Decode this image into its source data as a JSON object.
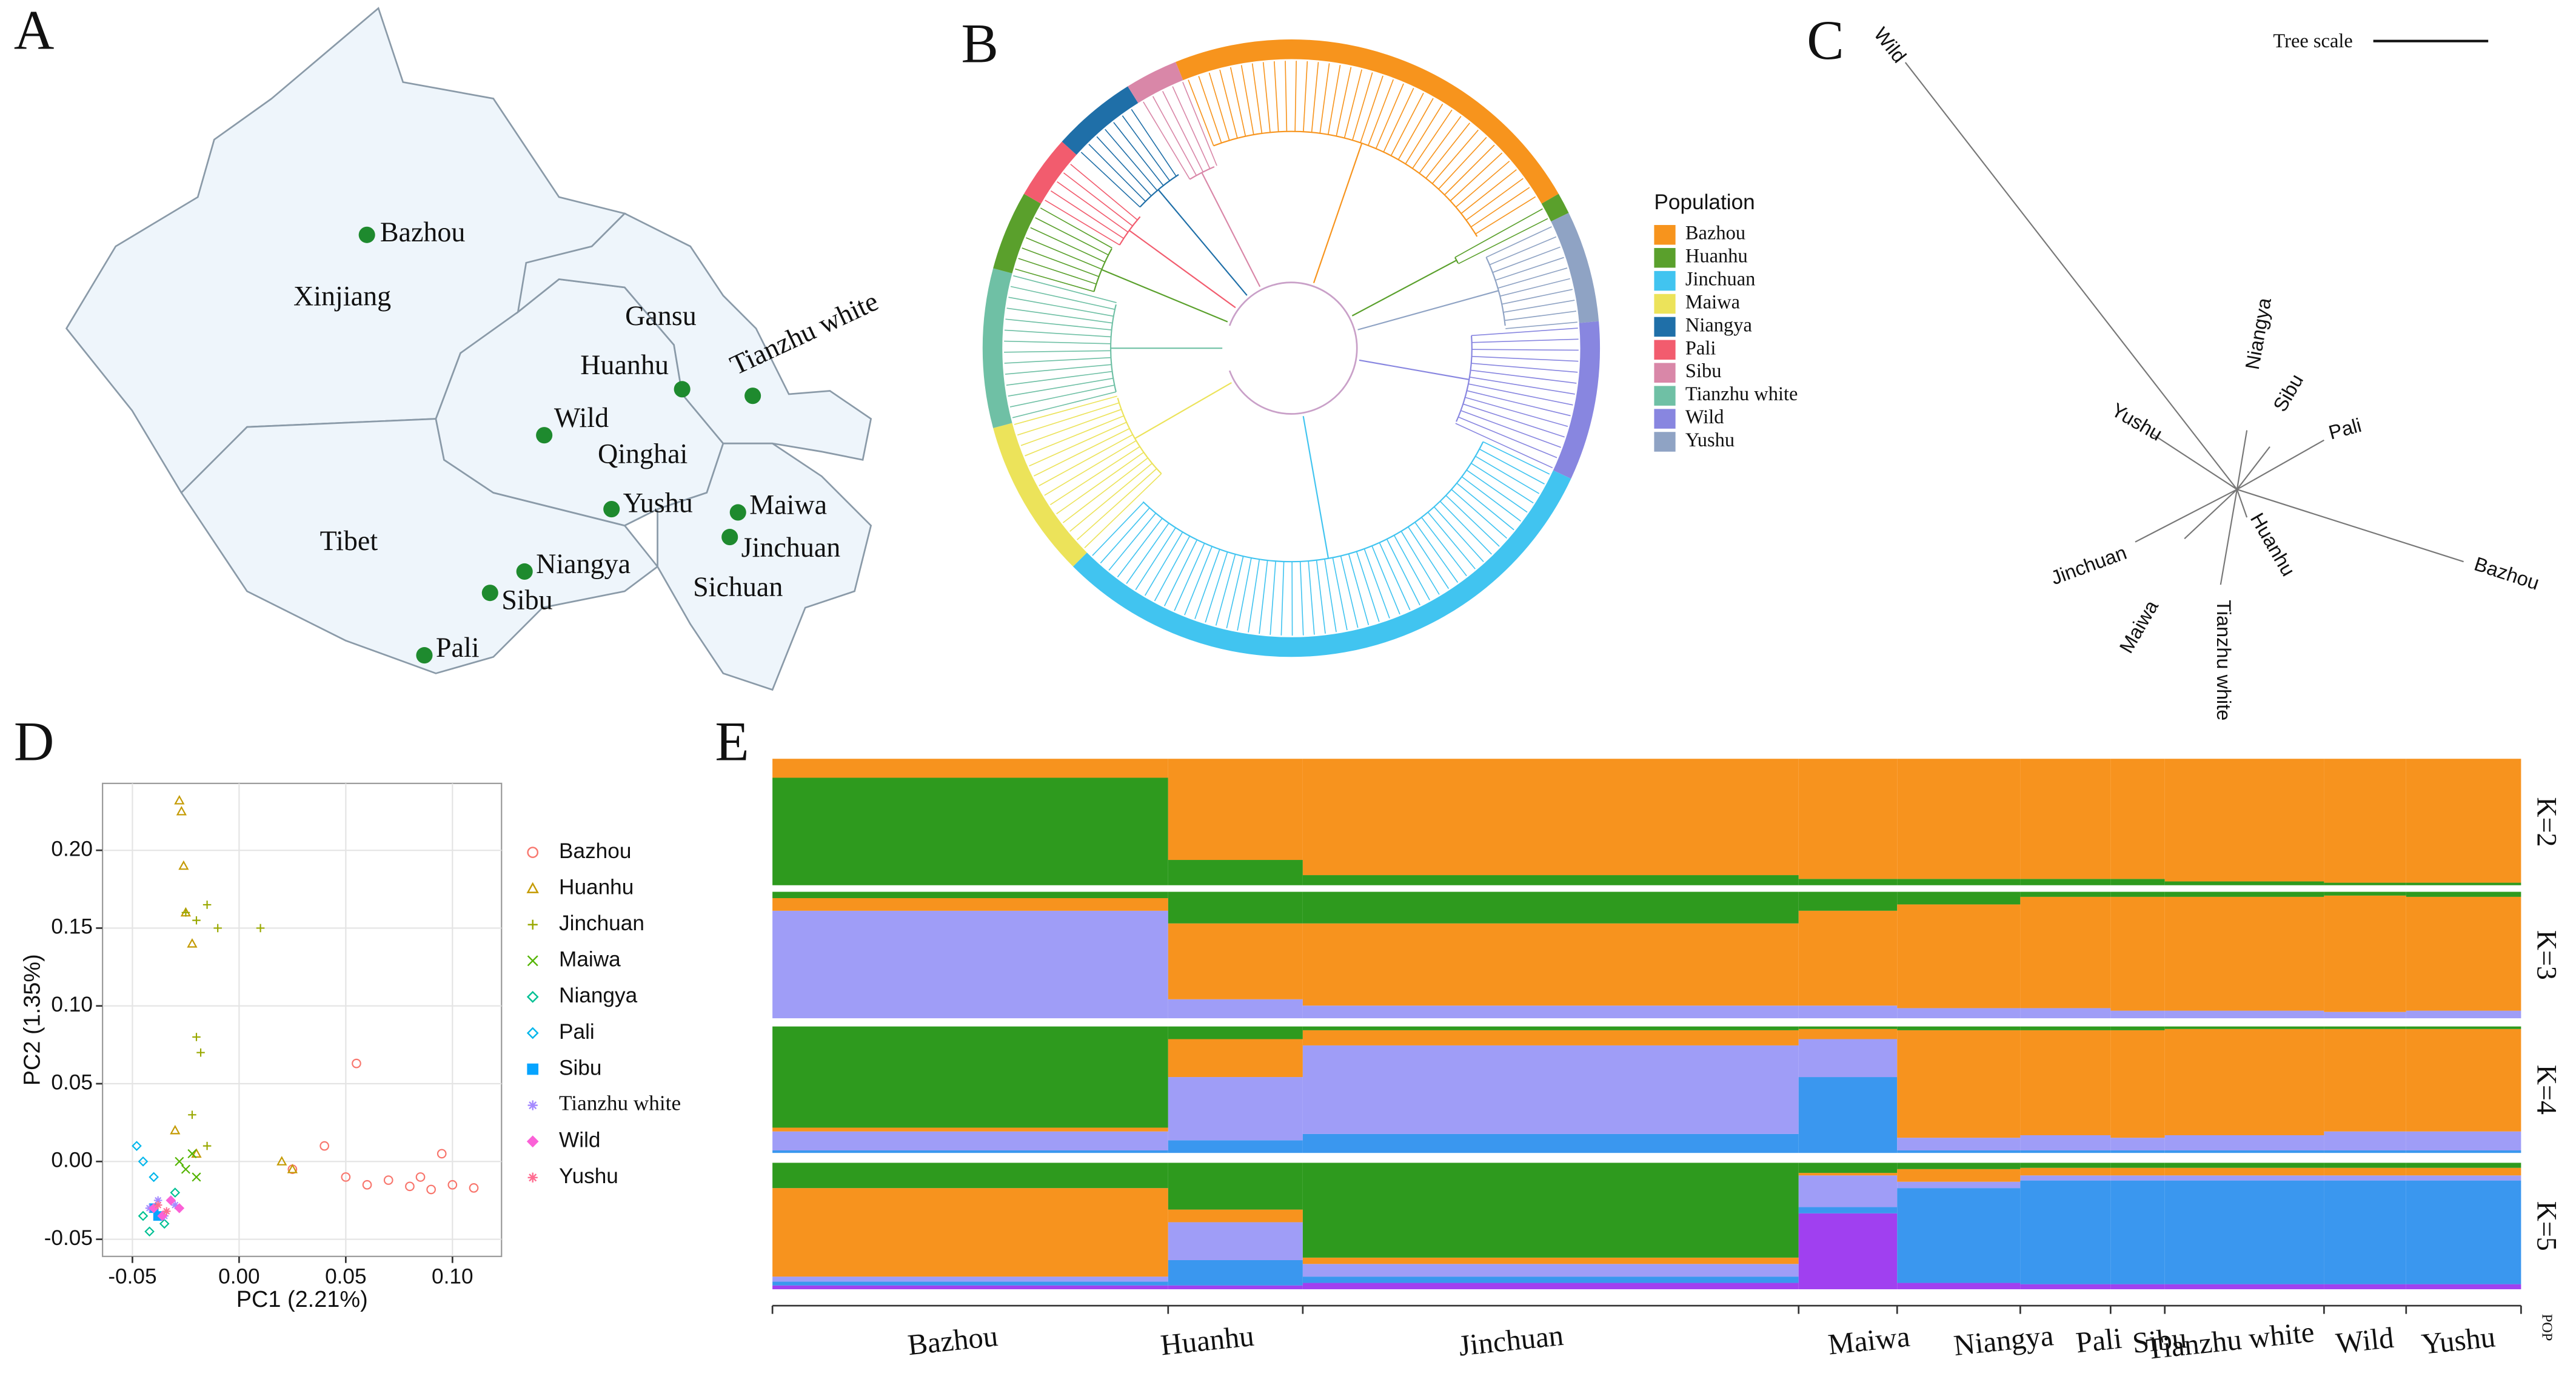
{
  "panels": {
    "a": "A",
    "b": "B",
    "c": "C",
    "d": "D",
    "e": "E"
  },
  "map": {
    "regions": [
      "Xinjiang",
      "Gansu",
      "Qinghai",
      "Tibet",
      "Sichuan"
    ],
    "sites": [
      "Bazhou",
      "Huanhu",
      "Tianzhu white",
      "Wild",
      "Yushu",
      "Maiwa",
      "Jinchuan",
      "Niangya",
      "Sibu",
      "Pali"
    ],
    "site_color": "#1e8a2e",
    "label_color": "#f0304a"
  },
  "tree_legend": {
    "title": "Population",
    "items": [
      {
        "name": "Bazhou",
        "color": "#f7941d"
      },
      {
        "name": "Huanhu",
        "color": "#5aa02c"
      },
      {
        "name": "Jinchuan",
        "color": "#41c4f0"
      },
      {
        "name": "Maiwa",
        "color": "#ece35a"
      },
      {
        "name": "Niangya",
        "color": "#1f6fa8"
      },
      {
        "name": "Pali",
        "color": "#f25c6e"
      },
      {
        "name": "Sibu",
        "color": "#d987a8"
      },
      {
        "name": "Tianzhu white",
        "color": "#6fc0a5"
      },
      {
        "name": "Wild",
        "color": "#8886e0"
      },
      {
        "name": "Yushu",
        "color": "#8fa3c4"
      }
    ]
  },
  "unrooted_tree": {
    "scale_label": "Tree scale",
    "tips": [
      "Wild",
      "Yushu",
      "Niangya",
      "Sibu",
      "Pali",
      "Bazhou",
      "Huanhu",
      "Tianzhu white",
      "Maiwa",
      "Jinchuan"
    ]
  },
  "chart_data": {
    "type": "scatter",
    "xlabel": "PC1 (2.21%)",
    "ylabel": "PC2 (1.35%)",
    "xlim": [
      -0.064,
      0.123
    ],
    "ylim": [
      -0.061,
      0.243
    ],
    "xticks": [
      -0.05,
      {
        "value": 0,
        "label": "0.00"
      },
      0.05,
      {
        "value": 0.1,
        "label": "0.10"
      }
    ],
    "yticks": [
      -0.05,
      {
        "value": 0,
        "label": "0.00"
      },
      0.05,
      {
        "value": 0.1,
        "label": "0.10"
      },
      0.15,
      {
        "value": 0.2,
        "label": "0.20"
      }
    ],
    "grid": true,
    "series": [
      {
        "name": "Bazhou",
        "color": "#f8766d",
        "shape": "circle",
        "x": [
          0.025,
          0.05,
          0.06,
          0.07,
          0.08,
          0.09,
          0.1,
          0.11,
          0.055,
          0.04,
          0.085,
          0.095
        ],
        "y": [
          -0.005,
          -0.01,
          -0.015,
          -0.012,
          -0.016,
          -0.018,
          -0.015,
          -0.017,
          0.063,
          0.01,
          -0.01,
          0.005
        ]
      },
      {
        "name": "Huanhu",
        "color": "#c49a00",
        "shape": "triangle",
        "x": [
          -0.028,
          -0.027,
          -0.026,
          -0.025,
          -0.022,
          0.02,
          0.025,
          -0.03,
          -0.02
        ],
        "y": [
          0.232,
          0.225,
          0.19,
          0.16,
          0.14,
          0.0,
          -0.005,
          0.02,
          0.005
        ]
      },
      {
        "name": "Jinchuan",
        "color": "#99a800",
        "shape": "plus",
        "x": [
          -0.025,
          -0.02,
          -0.015,
          -0.01,
          -0.02,
          -0.018,
          -0.022,
          -0.015,
          0.01
        ],
        "y": [
          0.16,
          0.155,
          0.165,
          0.15,
          0.08,
          0.07,
          0.03,
          0.01,
          0.15
        ]
      },
      {
        "name": "Maiwa",
        "color": "#53b400",
        "shape": "cross",
        "x": [
          -0.028,
          -0.025,
          -0.022,
          -0.02
        ],
        "y": [
          0.0,
          -0.005,
          0.005,
          -0.01
        ]
      },
      {
        "name": "Niangya",
        "color": "#00c094",
        "shape": "diamond",
        "x": [
          -0.045,
          -0.04,
          -0.035,
          -0.03,
          -0.042
        ],
        "y": [
          -0.035,
          -0.03,
          -0.04,
          -0.02,
          -0.045
        ]
      },
      {
        "name": "Pali",
        "color": "#00b6eb",
        "shape": "diamond",
        "x": [
          -0.048,
          -0.045,
          -0.04
        ],
        "y": [
          0.01,
          0.0,
          -0.01
        ]
      },
      {
        "name": "Sibu",
        "color": "#06a4ff",
        "shape": "square",
        "x": [
          -0.04,
          -0.038
        ],
        "y": [
          -0.03,
          -0.035
        ]
      },
      {
        "name": "Tianzhu white",
        "color": "#a58aff",
        "shape": "star",
        "x": [
          -0.042,
          -0.038,
          -0.035,
          -0.03
        ],
        "y": [
          -0.03,
          -0.025,
          -0.035,
          -0.028
        ]
      },
      {
        "name": "Wild",
        "color": "#fb61d7",
        "shape": "filled-diamond",
        "x": [
          -0.04,
          -0.036,
          -0.032,
          -0.028
        ],
        "y": [
          -0.03,
          -0.035,
          -0.025,
          -0.03
        ]
      },
      {
        "name": "Yushu",
        "color": "#ff6c91",
        "shape": "star",
        "x": [
          -0.038,
          -0.034
        ],
        "y": [
          -0.028,
          -0.032
        ]
      }
    ]
  },
  "admixture": {
    "pop_label": "POP",
    "populations": [
      "Bazhou",
      "Huanhu",
      "Jinchuan",
      "Maiwa",
      "Niangya",
      "Pali",
      "Sibu",
      "Tianzhu white",
      "Wild",
      "Yushu"
    ],
    "k": [
      {
        "label": "K=2",
        "colors": [
          "#2e9a1e",
          "#f7931e"
        ],
        "values": [
          [
            0.85,
            0.15
          ],
          [
            0.2,
            0.8
          ],
          [
            0.08,
            0.92
          ],
          [
            0.05,
            0.95
          ],
          [
            0.05,
            0.95
          ],
          [
            0.05,
            0.95
          ],
          [
            0.05,
            0.95
          ],
          [
            0.03,
            0.97
          ],
          [
            0.02,
            0.98
          ],
          [
            0.02,
            0.98
          ]
        ]
      },
      {
        "label": "K=3",
        "colors": [
          "#9f9df7",
          "#f7931e",
          "#2e9a1e"
        ],
        "values": [
          [
            0.85,
            0.1,
            0.05
          ],
          [
            0.15,
            0.6,
            0.25
          ],
          [
            0.1,
            0.65,
            0.25
          ],
          [
            0.1,
            0.75,
            0.15
          ],
          [
            0.08,
            0.82,
            0.1
          ],
          [
            0.08,
            0.88,
            0.04
          ],
          [
            0.06,
            0.9,
            0.04
          ],
          [
            0.06,
            0.9,
            0.04
          ],
          [
            0.05,
            0.92,
            0.03
          ],
          [
            0.06,
            0.9,
            0.04
          ]
        ]
      },
      {
        "label": "K=4",
        "colors": [
          "#3a97ef",
          "#9f9df7",
          "#f7931e",
          "#2e9a1e"
        ],
        "values": [
          [
            0.02,
            0.15,
            0.03,
            0.8
          ],
          [
            0.1,
            0.5,
            0.3,
            0.1
          ],
          [
            0.15,
            0.7,
            0.12,
            0.03
          ],
          [
            0.6,
            0.3,
            0.08,
            0.02
          ],
          [
            0.02,
            0.1,
            0.85,
            0.03
          ],
          [
            0.02,
            0.12,
            0.83,
            0.03
          ],
          [
            0.02,
            0.1,
            0.85,
            0.03
          ],
          [
            0.02,
            0.12,
            0.84,
            0.02
          ],
          [
            0.02,
            0.15,
            0.81,
            0.02
          ],
          [
            0.02,
            0.15,
            0.81,
            0.02
          ]
        ]
      },
      {
        "label": "K=5",
        "colors": [
          "#a040f0",
          "#3a97ef",
          "#9f9df7",
          "#f7931e",
          "#2e9a1e"
        ],
        "values": [
          [
            0.03,
            0.03,
            0.04,
            0.7,
            0.2
          ],
          [
            0.03,
            0.2,
            0.3,
            0.1,
            0.37
          ],
          [
            0.05,
            0.05,
            0.1,
            0.05,
            0.75
          ],
          [
            0.6,
            0.05,
            0.25,
            0.02,
            0.08
          ],
          [
            0.05,
            0.75,
            0.05,
            0.1,
            0.05
          ],
          [
            0.04,
            0.82,
            0.04,
            0.06,
            0.04
          ],
          [
            0.04,
            0.82,
            0.04,
            0.06,
            0.04
          ],
          [
            0.04,
            0.82,
            0.04,
            0.06,
            0.04
          ],
          [
            0.04,
            0.82,
            0.04,
            0.06,
            0.04
          ],
          [
            0.04,
            0.82,
            0.04,
            0.06,
            0.04
          ]
        ]
      }
    ]
  }
}
